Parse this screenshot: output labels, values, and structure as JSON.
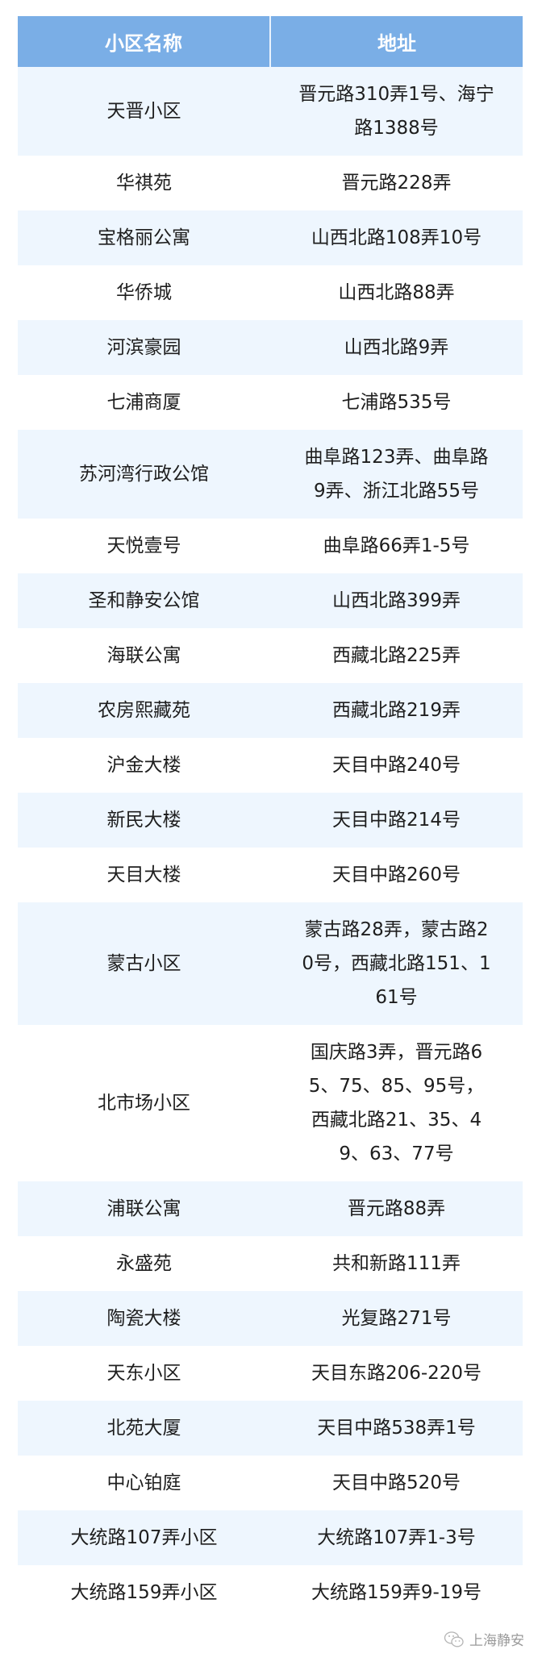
{
  "header": {
    "name": "小区名称",
    "address": "地址"
  },
  "colors": {
    "header_bg": "#7aaee6",
    "stripe_bg": "#eef6fe"
  },
  "rows": [
    {
      "name": "天晋小区",
      "address": [
        "晋元路310弄1号、海宁",
        "路1388号"
      ]
    },
    {
      "name": "华祺苑",
      "address": [
        "晋元路228弄"
      ]
    },
    {
      "name": "宝格丽公寓",
      "address": [
        "山西北路108弄10号"
      ]
    },
    {
      "name": "华侨城",
      "address": [
        "山西北路88弄"
      ]
    },
    {
      "name": "河滨豪园",
      "address": [
        "山西北路9弄"
      ]
    },
    {
      "name": "七浦商厦",
      "address": [
        "七浦路535号"
      ]
    },
    {
      "name": "苏河湾行政公馆",
      "address": [
        "曲阜路123弄、曲阜路",
        "9弄、浙江北路55号"
      ]
    },
    {
      "name": "天悦壹号",
      "address": [
        "曲阜路66弄1-5号"
      ]
    },
    {
      "name": "圣和静安公馆",
      "address": [
        "山西北路399弄"
      ]
    },
    {
      "name": "海联公寓",
      "address": [
        "西藏北路225弄"
      ]
    },
    {
      "name": "农房熙藏苑",
      "address": [
        "西藏北路219弄"
      ]
    },
    {
      "name": "沪金大楼",
      "address": [
        "天目中路240号"
      ]
    },
    {
      "name": "新民大楼",
      "address": [
        "天目中路214号"
      ]
    },
    {
      "name": "天目大楼",
      "address": [
        "天目中路260号"
      ]
    },
    {
      "name": "蒙古小区",
      "address": [
        "蒙古路28弄，蒙古路2",
        "0号，西藏北路151、1",
        "61号"
      ]
    },
    {
      "name": "北市场小区",
      "address": [
        "国庆路3弄，晋元路6",
        "5、75、85、95号，",
        "西藏北路21、35、4",
        "9、63、77号"
      ]
    },
    {
      "name": "浦联公寓",
      "address": [
        "晋元路88弄"
      ]
    },
    {
      "name": "永盛苑",
      "address": [
        "共和新路111弄"
      ]
    },
    {
      "name": "陶瓷大楼",
      "address": [
        "光复路271号"
      ]
    },
    {
      "name": "天东小区",
      "address": [
        "天目东路206-220号"
      ]
    },
    {
      "name": "北苑大厦",
      "address": [
        "天目中路538弄1号"
      ]
    },
    {
      "name": "中心铂庭",
      "address": [
        "天目中路520号"
      ]
    },
    {
      "name": "大统路107弄小区",
      "address": [
        "大统路107弄1-3号"
      ]
    },
    {
      "name": "大统路159弄小区",
      "address": [
        "大统路159弄9-19号"
      ]
    }
  ],
  "watermark": {
    "icon": "wechat-icon",
    "text": "上海静安"
  }
}
